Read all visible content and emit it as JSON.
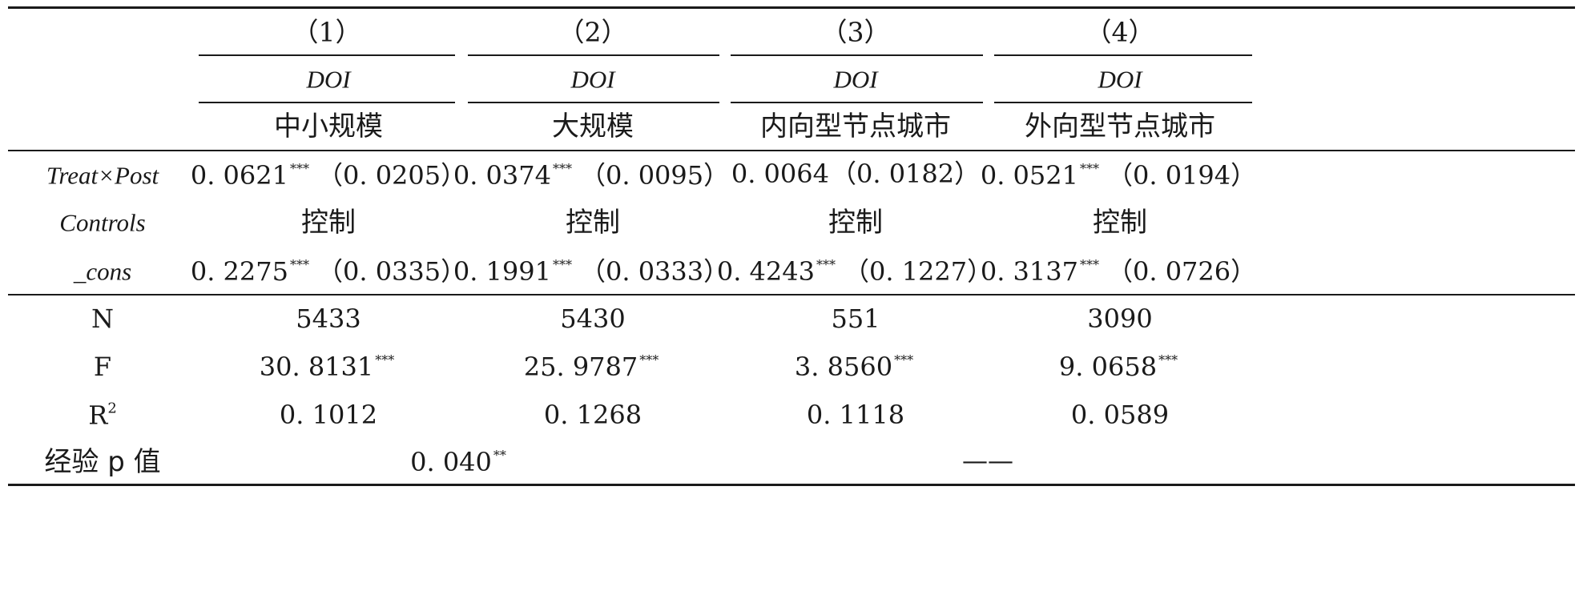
{
  "table": {
    "columns": [
      {
        "number": "（1）",
        "dep_var": "DOI",
        "group": "中小规模"
      },
      {
        "number": "（2）",
        "dep_var": "DOI",
        "group": "大规模"
      },
      {
        "number": "（3）",
        "dep_var": "DOI",
        "group": "内向型节点城市"
      },
      {
        "number": "（4）",
        "dep_var": "DOI",
        "group": "外向型节点城市"
      }
    ],
    "rows": {
      "treat_post": {
        "label": "Treat×Post",
        "cells": [
          {
            "coef": "0. 0621",
            "stars": "***",
            "se": "（0. 0205）"
          },
          {
            "coef": "0. 0374",
            "stars": "***",
            "se": "（0. 0095）"
          },
          {
            "coef": "0. 0064",
            "stars": "",
            "se": "（0. 0182）"
          },
          {
            "coef": "0. 0521",
            "stars": "***",
            "se": "（0. 0194）"
          }
        ]
      },
      "controls": {
        "label": "Controls",
        "cells": [
          "控制",
          "控制",
          "控制",
          "控制"
        ]
      },
      "cons": {
        "label": "_cons",
        "cells": [
          {
            "coef": "0. 2275",
            "stars": "***",
            "se": "（0. 0335）"
          },
          {
            "coef": "0. 1991",
            "stars": "***",
            "se": "（0. 0333）"
          },
          {
            "coef": "0. 4243",
            "stars": "***",
            "se": "（0. 1227）"
          },
          {
            "coef": "0. 3137",
            "stars": "***",
            "se": "（0. 0726）"
          }
        ]
      },
      "n": {
        "label": "N",
        "cells": [
          "5433",
          "5430",
          "551",
          "3090"
        ]
      },
      "f": {
        "label": "F",
        "cells": [
          {
            "value": "30. 8131",
            "stars": "***"
          },
          {
            "value": "25. 9787",
            "stars": "***"
          },
          {
            "value": "3. 8560",
            "stars": "***"
          },
          {
            "value": "9. 0658",
            "stars": "***"
          }
        ]
      },
      "r2": {
        "label_base": "R",
        "label_sup": "2",
        "cells": [
          "0. 1012",
          "0. 1268",
          "0. 1118",
          "0. 0589"
        ]
      },
      "pvalue": {
        "label": "经验 p 值",
        "left_value": "0. 040",
        "left_stars": "**",
        "right_value": "——"
      }
    }
  }
}
